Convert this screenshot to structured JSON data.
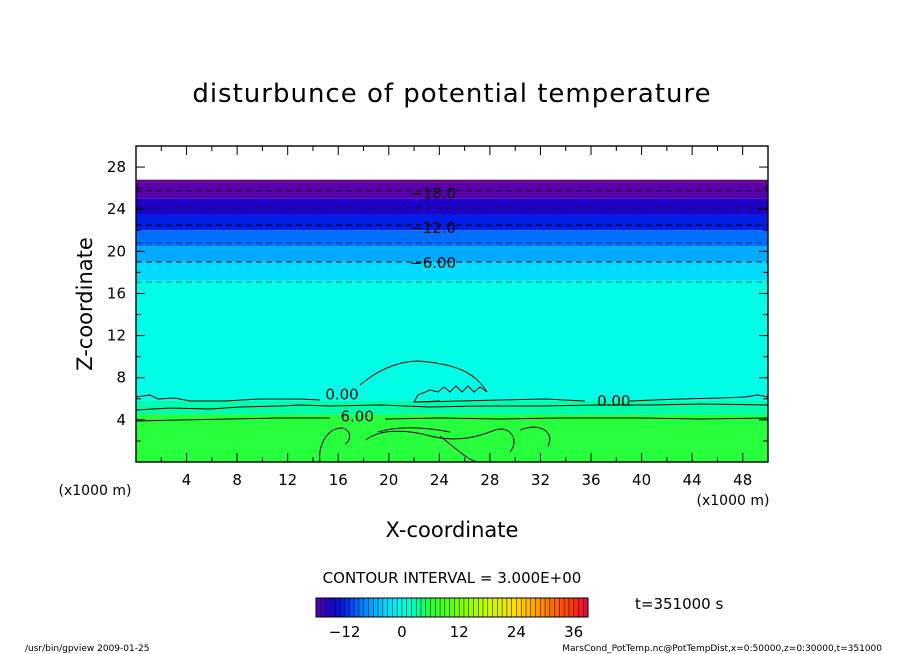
{
  "chart_data": {
    "type": "heatmap",
    "title": "disturbunce of potential temperature",
    "xlabel": "X-coordinate",
    "ylabel": "Z-coordinate",
    "x_unit": "(x1000 m)",
    "y_unit": "(x1000 m)",
    "xlim": [
      0,
      50
    ],
    "ylim": [
      0,
      30
    ],
    "x_ticks": [
      4,
      8,
      12,
      16,
      20,
      24,
      28,
      32,
      36,
      40,
      44,
      48
    ],
    "y_ticks": [
      4,
      8,
      12,
      16,
      20,
      24,
      28
    ],
    "contour_interval_label": "CONTOUR INTERVAL = 3.000E+00",
    "time_label": "t=351000 s",
    "colorbar": {
      "min": -18,
      "max": 39,
      "tick_values": [
        -12,
        0,
        12,
        24,
        36
      ],
      "tick_labels": [
        "−12",
        "0",
        "12",
        "24",
        "36"
      ]
    },
    "contour_labels": [
      {
        "text": "−18.0",
        "x": 23.5,
        "z": 25.5
      },
      {
        "text": "−12.0",
        "x": 23.5,
        "z": 22.2
      },
      {
        "text": "−6.00",
        "x": 23.5,
        "z": 18.9
      },
      {
        "text": "0.00",
        "x": 16.3,
        "z": 6.4
      },
      {
        "text": "0.00",
        "x": 37.8,
        "z": 5.8
      },
      {
        "text": "6.00",
        "x": 17.5,
        "z": 4.3
      }
    ],
    "layers": [
      {
        "z_bottom": 26.5,
        "z_top": 26.8,
        "value": -20
      },
      {
        "z_bottom": 25.0,
        "z_top": 26.5,
        "value": -18
      },
      {
        "z_bottom": 23.5,
        "z_top": 25.0,
        "value": -15
      },
      {
        "z_bottom": 22.0,
        "z_top": 23.5,
        "value": -12
      },
      {
        "z_bottom": 20.5,
        "z_top": 22.0,
        "value": -9
      },
      {
        "z_bottom": 19.0,
        "z_top": 20.5,
        "value": -6
      },
      {
        "z_bottom": 17.2,
        "z_top": 19.0,
        "value": -3
      },
      {
        "z_bottom": 5.8,
        "z_top": 17.2,
        "value": 0
      },
      {
        "z_bottom": 4.5,
        "z_top": 5.8,
        "value": 3
      },
      {
        "z_bottom": 0.0,
        "z_top": 4.5,
        "value": 6
      }
    ]
  },
  "footer": {
    "left": "/usr/bin/gpview   2009-01-25",
    "right": "MarsCond_PotTemp.nc@PotTempDist,x=0:50000,z=0:30000,t=351000"
  }
}
